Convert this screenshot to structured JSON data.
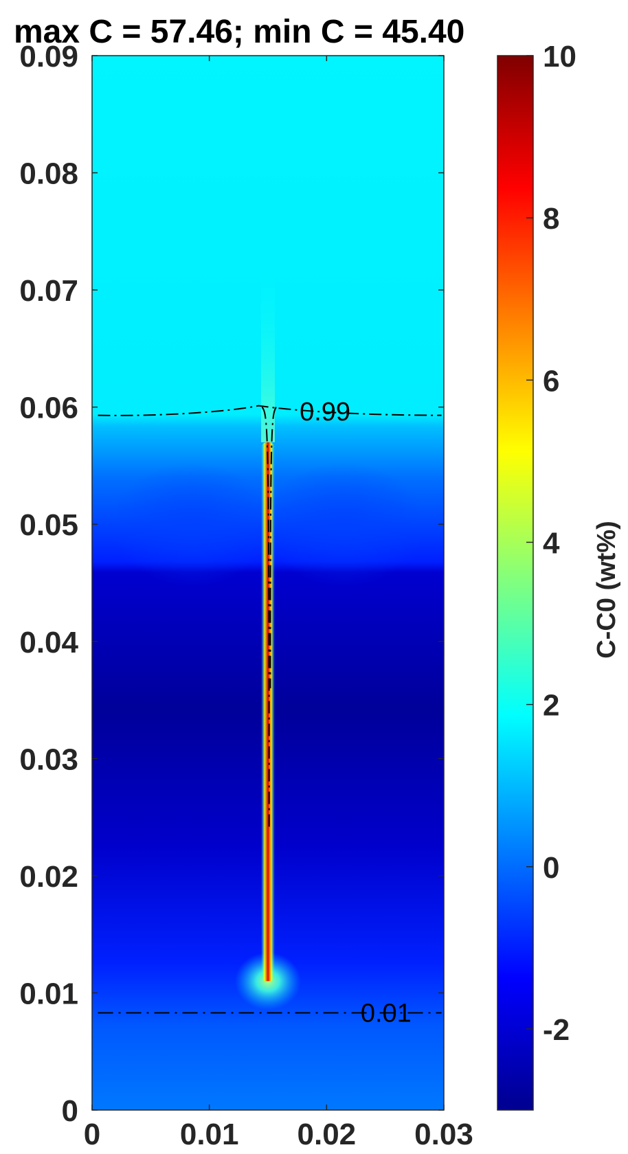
{
  "chart_data": {
    "type": "heatmap",
    "title": "max C = 57.46; min C = 45.40",
    "xlabel": "",
    "ylabel": "",
    "xlim": [
      0,
      0.03
    ],
    "ylim": [
      0,
      0.09
    ],
    "x_ticks": [
      "0",
      "0.01",
      "0.02",
      "0.03"
    ],
    "x_tick_values": [
      0,
      0.01,
      0.02,
      0.03
    ],
    "y_ticks": [
      "0",
      "0.01",
      "0.02",
      "0.03",
      "0.04",
      "0.05",
      "0.06",
      "0.07",
      "0.08",
      "0.09"
    ],
    "y_tick_values": [
      0,
      0.01,
      0.02,
      0.03,
      0.04,
      0.05,
      0.06,
      0.07,
      0.08,
      0.09
    ],
    "colormap": "jet",
    "colorbar": {
      "label": "C-C0 (wt%)",
      "range": [
        -3,
        10
      ],
      "ticks": [
        "-2",
        "0",
        "2",
        "4",
        "6",
        "8",
        "10"
      ],
      "tick_values": [
        -2,
        0,
        2,
        4,
        6,
        8,
        10
      ]
    },
    "field_regions": [
      {
        "y_range": [
          0.059,
          0.09
        ],
        "value": 1.8,
        "note": "upper liquid, light cyan"
      },
      {
        "y_range": [
          0.045,
          0.059
        ],
        "value": -0.6,
        "note": "blue gradient"
      },
      {
        "y_range": [
          0.01,
          0.045
        ],
        "value": -2.3,
        "note": "dark blue band"
      },
      {
        "y_range": [
          0.0,
          0.01
        ],
        "value": 0.4,
        "note": "bottom, lighter blue"
      }
    ],
    "channel": {
      "x_center": 0.015,
      "y_bottom": 0.011,
      "y_top": 0.057,
      "peak_value": 9.5
    },
    "contours": [
      {
        "level_label": "0.99",
        "y_approx": 0.0593,
        "label_x": 0.0177,
        "label_y": 0.0597
      },
      {
        "level_label": "0.01",
        "y_approx": 0.0083,
        "label_x": 0.0229,
        "label_y": 0.0083
      }
    ],
    "colors": {
      "axis": "#262626",
      "contour": "#000000"
    }
  }
}
